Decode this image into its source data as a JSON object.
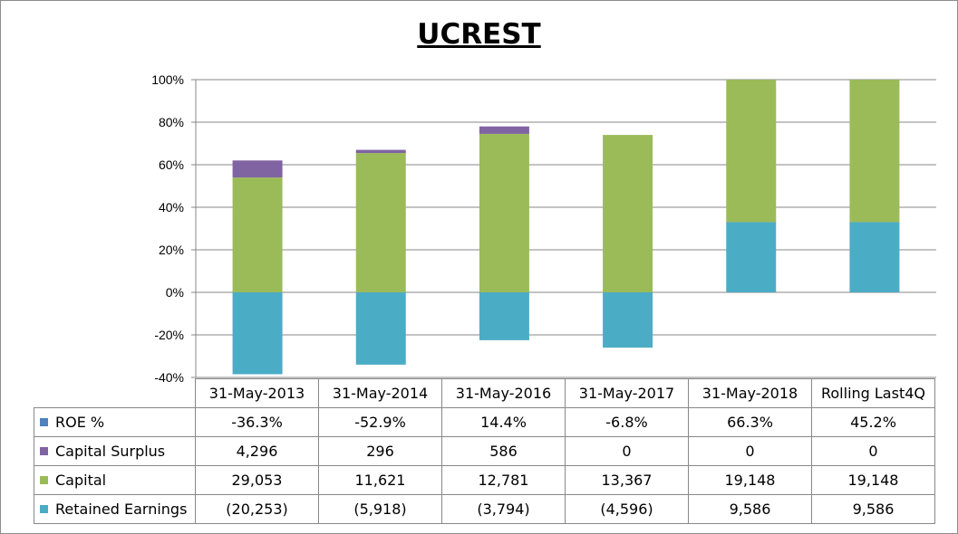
{
  "chart_data": {
    "type": "bar",
    "stacked": true,
    "title": "UCREST",
    "categories": [
      "31-May-2013",
      "31-May-2014",
      "31-May-2016",
      "31-May-2017",
      "31-May-2018",
      "Rolling Last4Q"
    ],
    "y_axis": {
      "min": -40,
      "max": 100,
      "step": 20,
      "tick_labels": [
        "100%",
        "80%",
        "60%",
        "40%",
        "20%",
        "0%",
        "-20%",
        "-40%"
      ],
      "grid": true
    },
    "series": [
      {
        "name": "Retained Earnings",
        "color": "#4bacc6",
        "values": [
          -38.5,
          -34,
          -22.5,
          -26,
          33,
          33
        ]
      },
      {
        "name": "Capital",
        "color": "#9bbb59",
        "values": [
          54,
          65.5,
          74.5,
          74,
          67,
          67
        ]
      },
      {
        "name": "Capital Surplus",
        "color": "#8064a2",
        "values": [
          8,
          1.5,
          3.5,
          0,
          0,
          0
        ]
      },
      {
        "name": "ROE %",
        "color": "#4f81bd",
        "values": [
          0,
          0,
          0,
          0,
          0,
          0
        ]
      }
    ],
    "table": {
      "rows": [
        {
          "key": "roe",
          "label": "ROE %",
          "color": "#4f81bd",
          "cells": [
            "-36.3%",
            "-52.9%",
            "14.4%",
            "-6.8%",
            "66.3%",
            "45.2%"
          ]
        },
        {
          "key": "surplus",
          "label": "Capital Surplus",
          "color": "#8064a2",
          "cells": [
            "4,296",
            "296",
            "586",
            "0",
            "0",
            "0"
          ]
        },
        {
          "key": "capital",
          "label": "Capital",
          "color": "#9bbb59",
          "cells": [
            "29,053",
            "11,621",
            "12,781",
            "13,367",
            "19,148",
            "19,148"
          ]
        },
        {
          "key": "retained",
          "label": "Retained Earnings",
          "color": "#4bacc6",
          "cells": [
            "(20,253)",
            "(5,918)",
            "(3,794)",
            "(4,596)",
            "9,586",
            "9,586"
          ]
        }
      ]
    }
  }
}
